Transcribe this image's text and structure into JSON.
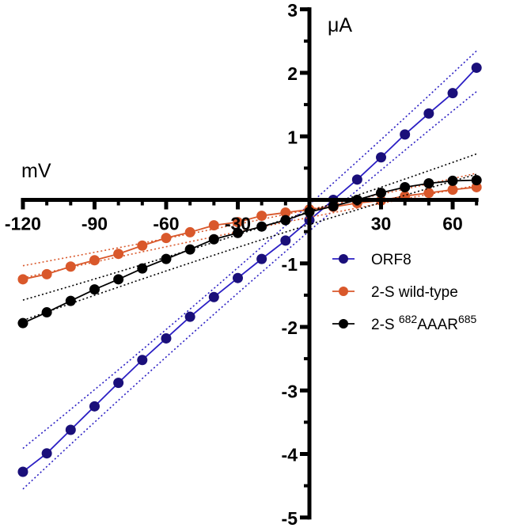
{
  "chart_data": {
    "type": "line",
    "title": "",
    "xlabel": "mV",
    "ylabel": "μA",
    "xlim": [
      -120,
      70
    ],
    "ylim": [
      -5,
      3
    ],
    "x_ticks_major": [
      -120,
      -90,
      -60,
      -30,
      30,
      60
    ],
    "x_tick_labels": [
      "-120",
      "-90",
      "-60",
      "-30",
      "30",
      "60"
    ],
    "y_ticks_major": [
      -5,
      -4,
      -3,
      -2,
      -1,
      1,
      2,
      3
    ],
    "y_tick_labels": [
      "-5",
      "-4",
      "-3",
      "-2",
      "-1",
      "1",
      "2",
      "3"
    ],
    "grid": false,
    "legend_position": "right-center",
    "x": [
      -120,
      -110,
      -100,
      -90,
      -80,
      -70,
      -60,
      -50,
      -40,
      -30,
      -20,
      -10,
      0,
      10,
      20,
      30,
      40,
      50,
      60,
      70
    ],
    "series": [
      {
        "name": "ORF8",
        "legend_label": {
          "prefix": "ORF8",
          "sup1": "",
          "middle": "",
          "sup2": ""
        },
        "color": "#1a0f7a",
        "line_color": "#2b1fc4",
        "values": [
          -4.28,
          -3.99,
          -3.62,
          -3.25,
          -2.88,
          -2.52,
          -2.18,
          -1.84,
          -1.53,
          -1.23,
          -0.93,
          -0.64,
          -0.32,
          0.0,
          0.32,
          0.67,
          1.03,
          1.36,
          1.68,
          2.08
        ],
        "ci_halfwidth": 0.2
      },
      {
        "name": "2-S wild-type",
        "legend_label": {
          "prefix": "2-S wild-type",
          "sup1": "",
          "middle": "",
          "sup2": ""
        },
        "color": "#d9582b",
        "line_color": "#d9582b",
        "values": [
          -1.25,
          -1.17,
          -1.05,
          -0.95,
          -0.85,
          -0.72,
          -0.6,
          -0.51,
          -0.4,
          -0.35,
          -0.25,
          -0.2,
          -0.15,
          -0.11,
          -0.05,
          -0.01,
          0.06,
          0.11,
          0.16,
          0.2
        ],
        "ci_halfwidth": 0.06
      },
      {
        "name": "2-S 682AAAR685",
        "legend_label": {
          "prefix": "2-S ",
          "sup1": "682",
          "middle": "AAAR",
          "sup2": "685"
        },
        "color": "#000000",
        "line_color": "#000000",
        "values": [
          -1.94,
          -1.77,
          -1.59,
          -1.41,
          -1.25,
          -1.08,
          -0.93,
          -0.78,
          -0.62,
          -0.52,
          -0.42,
          -0.32,
          -0.19,
          -0.1,
          0.0,
          0.11,
          0.2,
          0.26,
          0.3,
          0.31
        ],
        "ci_halfwidth": 0.1
      }
    ]
  }
}
